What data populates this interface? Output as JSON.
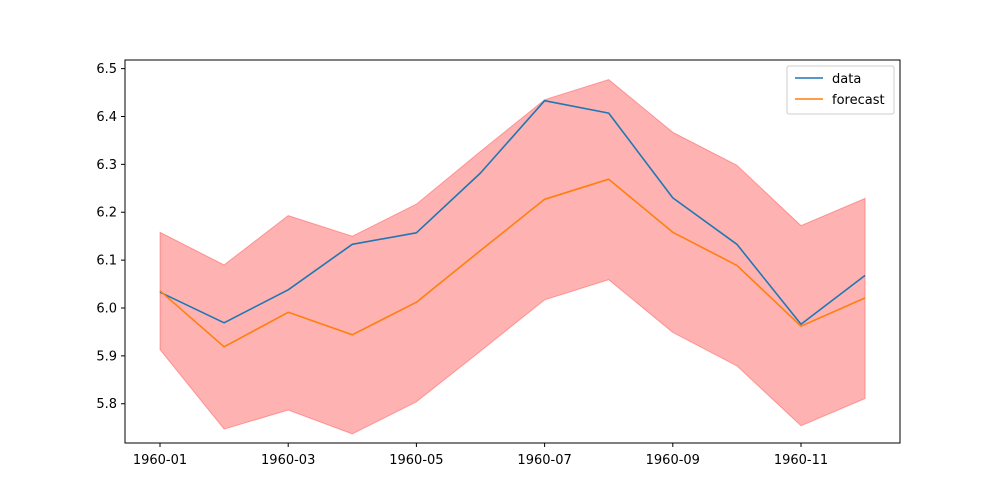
{
  "chart_data": {
    "type": "line",
    "x": [
      "1960-01",
      "1960-02",
      "1960-03",
      "1960-04",
      "1960-05",
      "1960-06",
      "1960-07",
      "1960-08",
      "1960-09",
      "1960-10",
      "1960-11",
      "1960-12"
    ],
    "xtick_labels": [
      "1960-01",
      "1960-03",
      "1960-05",
      "1960-07",
      "1960-09",
      "1960-11"
    ],
    "yticks": [
      5.8,
      5.9,
      6.0,
      6.1,
      6.2,
      6.3,
      6.4,
      6.5
    ],
    "ylim": [
      5.718,
      6.518
    ],
    "series": [
      {
        "name": "data",
        "color": "#1f77b4",
        "values": [
          6.033,
          5.969,
          6.038,
          6.133,
          6.157,
          6.282,
          6.433,
          6.407,
          6.23,
          6.133,
          5.966,
          6.068
        ]
      },
      {
        "name": "forecast",
        "color": "#ff7f0e",
        "values": [
          6.036,
          5.919,
          5.991,
          5.944,
          6.012,
          6.12,
          6.227,
          6.269,
          6.158,
          6.089,
          5.962,
          6.021
        ]
      }
    ],
    "confidence_band": {
      "color": "#ff0000",
      "opacity": 0.3,
      "lower": [
        5.913,
        5.747,
        5.787,
        5.737,
        5.804,
        5.91,
        6.017,
        6.059,
        5.949,
        5.879,
        5.754,
        5.811
      ],
      "upper": [
        6.158,
        6.09,
        6.193,
        6.15,
        6.217,
        6.327,
        6.435,
        6.477,
        6.367,
        6.298,
        6.172,
        6.229
      ]
    },
    "legend_position": "top-right",
    "grid": false,
    "title": "",
    "xlabel": "",
    "ylabel": ""
  }
}
